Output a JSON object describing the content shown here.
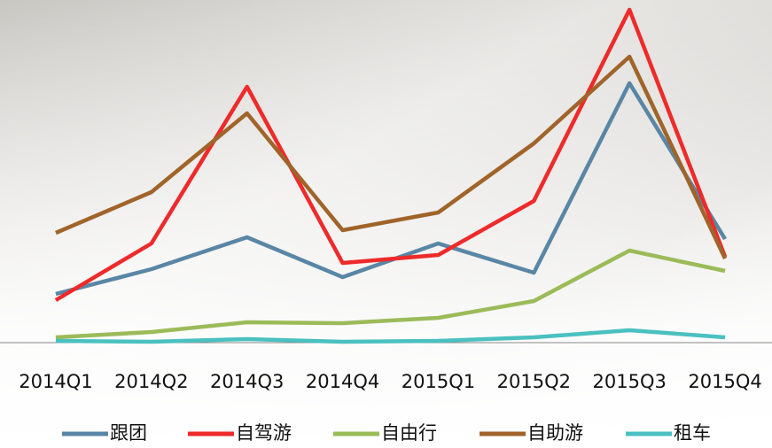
{
  "chart_data": {
    "type": "line",
    "categories": [
      "2014Q1",
      "2014Q2",
      "2014Q3",
      "2014Q4",
      "2015Q1",
      "2015Q2",
      "2015Q3",
      "2015Q4"
    ],
    "series": [
      {
        "name": "跟团",
        "color": "#5a86a5",
        "values": [
          55,
          83,
          119,
          74,
          112,
          79,
          293,
          117
        ]
      },
      {
        "name": "自驾游",
        "color": "#ee2a2a",
        "values": [
          48,
          112,
          289,
          90,
          99,
          160,
          376,
          97
        ]
      },
      {
        "name": "自由行",
        "color": "#9bbb59",
        "values": [
          6,
          12,
          23,
          22,
          28,
          47,
          104,
          81
        ]
      },
      {
        "name": "自助游",
        "color": "#a0642a",
        "values": [
          124,
          170,
          259,
          127,
          147,
          225,
          323,
          95
        ]
      },
      {
        "name": "租车",
        "color": "#4bc0c0",
        "values": [
          2,
          1,
          4,
          1,
          2,
          6,
          14,
          6
        ]
      }
    ],
    "ylim": [
      0,
      380
    ]
  }
}
